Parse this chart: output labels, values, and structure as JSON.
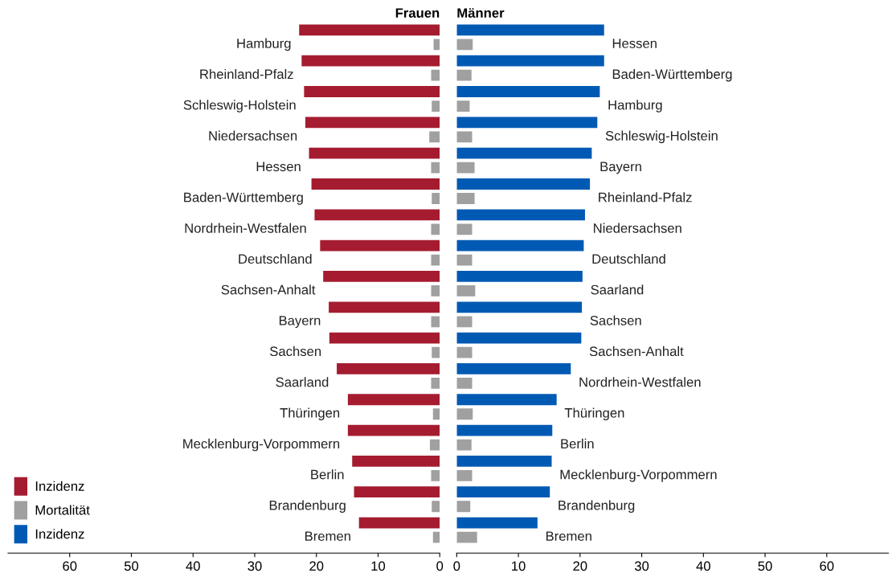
{
  "chart_data": [
    {
      "type": "bar",
      "orientation": "horizontal",
      "title": "Frauen",
      "categories": [
        "Hamburg",
        "Rheinland-Pfalz",
        "Schleswig-Holstein",
        "Niedersachsen",
        "Hessen",
        "Baden-Württemberg",
        "Nordrhein-Westfalen",
        "Deutschland",
        "Sachsen-Anhalt",
        "Bayern",
        "Sachsen",
        "Saarland",
        "Thüringen",
        "Mecklenburg-Vorpommern",
        "Berlin",
        "Brandenburg",
        "Bremen"
      ],
      "series": [
        {
          "name": "Inzidenz",
          "color": "#a51c30",
          "values": [
            22.8,
            22.4,
            22.0,
            21.8,
            21.2,
            20.8,
            20.3,
            19.4,
            18.9,
            18.0,
            17.9,
            16.7,
            14.9,
            14.9,
            14.2,
            13.9,
            13.1
          ]
        },
        {
          "name": "Mortalität",
          "color": "#a0a0a0",
          "values": [
            1.0,
            1.4,
            1.3,
            1.7,
            1.4,
            1.3,
            1.4,
            1.4,
            1.4,
            1.4,
            1.3,
            1.4,
            1.1,
            1.6,
            1.4,
            1.3,
            1.1
          ]
        }
      ],
      "xlim": [
        70,
        0
      ],
      "xticks": [
        60,
        50,
        40,
        30,
        20,
        10,
        0
      ],
      "tick_labels": "x",
      "grid": false,
      "legend": "bottom left"
    },
    {
      "type": "bar",
      "orientation": "horizontal",
      "title": "Männer",
      "categories": [
        "Hessen",
        "Baden-Württemberg",
        "Hamburg",
        "Schleswig-Holstein",
        "Bayern",
        "Rheinland-Pfalz",
        "Niedersachsen",
        "Deutschland",
        "Saarland",
        "Sachsen",
        "Sachsen-Anhalt",
        "Nordrhein-Westfalen",
        "Thüringen",
        "Berlin",
        "Mecklenburg-Vorpommern",
        "Brandenburg",
        "Bremen"
      ],
      "series": [
        {
          "name": "Inzidenz",
          "color": "#005ab4",
          "values": [
            23.9,
            23.9,
            23.2,
            22.8,
            21.9,
            21.6,
            20.8,
            20.6,
            20.4,
            20.3,
            20.2,
            18.5,
            16.2,
            15.5,
            15.4,
            15.1,
            13.1
          ]
        },
        {
          "name": "Mortalität",
          "color": "#a0a0a0",
          "values": [
            2.6,
            2.4,
            2.1,
            2.5,
            2.9,
            2.9,
            2.5,
            2.5,
            3.0,
            2.5,
            2.5,
            2.5,
            2.6,
            2.4,
            2.5,
            2.2,
            3.3
          ]
        }
      ],
      "xlim": [
        0,
        70
      ],
      "xticks": [
        0,
        10,
        20,
        30,
        40,
        50,
        60
      ],
      "tick_labels": "x",
      "grid": false,
      "legend": "bottom left"
    }
  ]
}
